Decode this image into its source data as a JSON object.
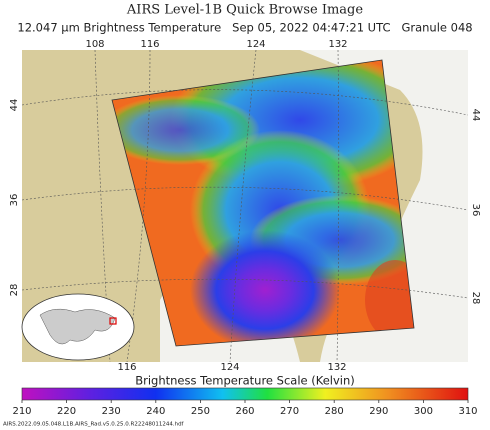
{
  "header": {
    "title": "AIRS Level-1B Quick Browse Image",
    "subtitle": "12.047 μm Brightness Temperature   Sep 05, 2022 04:47:21 UTC   Granule 048"
  },
  "map": {
    "top_lon_labels": [
      "108",
      "116",
      "124",
      "132"
    ],
    "bottom_lon_labels": [
      "116",
      "124",
      "132"
    ],
    "left_lat_labels": [
      "44",
      "36",
      "28"
    ],
    "right_lat_labels": [
      "44",
      "36",
      "28"
    ]
  },
  "colorbar": {
    "title": "Brightness Temperature Scale (Kelvin)",
    "range": [
      210,
      310
    ],
    "ticks": [
      210,
      220,
      230,
      240,
      250,
      260,
      270,
      280,
      290,
      300,
      310
    ]
  },
  "footer": {
    "filename": "AIRS.2022.09.05.048.L1B.AIRS_Rad.v5.0.25.0.R22248011244.hdf"
  }
}
